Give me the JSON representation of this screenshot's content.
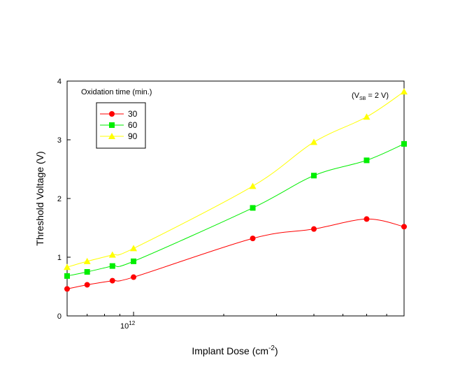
{
  "chart_data": {
    "type": "line",
    "xlabel": "Implant Dose (cm",
    "xlabel_sup": "-2",
    "ylabel": "Threshold Voltage (V)",
    "xscale": "log",
    "xlim": [
      600000000000.0,
      8000000000000.0
    ],
    "ylim": [
      0,
      4
    ],
    "yticks": [
      "0",
      "1",
      "2",
      "3",
      "4"
    ],
    "xtick_major": {
      "base": "10",
      "exp": "12",
      "value": 1000000000000.0
    },
    "grid": false,
    "legend": {
      "title": "Oxidation time (min.)",
      "placement": "top-left"
    },
    "annotation": {
      "prefix": "(V",
      "sub": "SB",
      "suffix": " = 2 V)"
    },
    "x": [
      600000000000.0,
      700000000000.0,
      850000000000.0,
      1000000000000.0,
      2500000000000.0,
      4000000000000.0,
      6000000000000.0,
      8000000000000.0
    ],
    "series": [
      {
        "name": "30",
        "color": "#ff0000",
        "marker": "circle",
        "values": [
          0.46,
          0.53,
          0.6,
          0.66,
          1.32,
          1.48,
          1.65,
          1.52
        ]
      },
      {
        "name": "60",
        "color": "#00ee00",
        "marker": "square",
        "values": [
          0.68,
          0.75,
          0.85,
          0.93,
          1.84,
          2.39,
          2.65,
          2.93
        ]
      },
      {
        "name": "90",
        "color": "#ffff00",
        "marker": "triangle",
        "values": [
          0.83,
          0.93,
          1.04,
          1.15,
          2.21,
          2.96,
          3.39,
          3.82
        ]
      }
    ]
  }
}
